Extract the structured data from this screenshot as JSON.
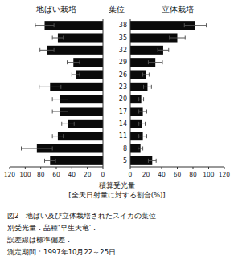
{
  "chart_data": [
    {
      "type": "bar",
      "orientation": "horizontal",
      "title": "地ばい栽培",
      "categories": [
        38,
        35,
        32,
        29,
        26,
        23,
        20,
        17,
        14,
        11,
        8,
        5
      ],
      "values": [
        75,
        58,
        72,
        38,
        35,
        68,
        55,
        55,
        45,
        58,
        85,
        68
      ],
      "errors": [
        12,
        7,
        9,
        8,
        5,
        14,
        10,
        10,
        8,
        7,
        20,
        7
      ],
      "color": "#0a0a0a",
      "xlim": [
        120,
        0
      ],
      "xticks": [
        120,
        100,
        80,
        60,
        40,
        20,
        0
      ],
      "tick_labels": "x",
      "grid": false,
      "xlabel": [
        "積算受光量",
        "[全天日射量に対する割合(%)]"
      ],
      "annotations": [
        "図2　地ばい及び立体栽培されたスイカの葉位",
        "別受光量．品種‘早生天竜’．",
        "誤差線は標準偏差．",
        "測定期間：1997年10月22～25日．"
      ]
    },
    {
      "type": "bar",
      "orientation": "horizontal",
      "title": "立体栽培",
      "ylabel": "葉位",
      "categories": [
        38,
        35,
        32,
        29,
        26,
        23,
        20,
        17,
        14,
        11,
        8,
        5
      ],
      "values": [
        83,
        60,
        42,
        32,
        20,
        22,
        14,
        16,
        15,
        16,
        13,
        28
      ],
      "errors": [
        14,
        10,
        7,
        9,
        4,
        5,
        3,
        5,
        4,
        5,
        3,
        5
      ],
      "color": "#0a0a0a",
      "xlim": [
        0,
        120
      ],
      "xticks": [
        0,
        20,
        40,
        60,
        80,
        100,
        120
      ],
      "grid": false
    }
  ]
}
